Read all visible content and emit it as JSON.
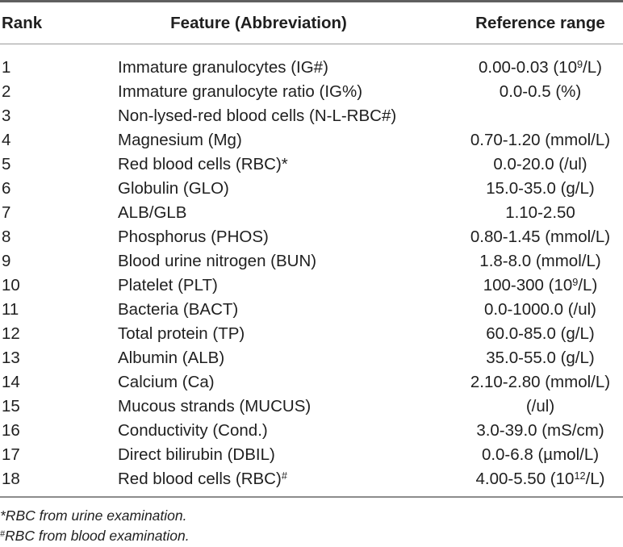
{
  "table": {
    "columns": [
      "Rank",
      "Feature (Abbreviation)",
      "Reference range"
    ],
    "rows": [
      {
        "rank": "1",
        "feature": [
          "Immature granulocytes (IG#)"
        ],
        "range": [
          "0.00-0.03 (10",
          {
            "sup": "9"
          },
          "/L)"
        ]
      },
      {
        "rank": "2",
        "feature": [
          "Immature granulocyte ratio (IG%)"
        ],
        "range": [
          "0.0-0.5 (%)"
        ]
      },
      {
        "rank": "3",
        "feature": [
          "Non-lysed-red blood cells (N-L-RBC#)"
        ],
        "range": []
      },
      {
        "rank": "4",
        "feature": [
          "Magnesium (Mg)"
        ],
        "range": [
          "0.70-1.20 (mmol/L)"
        ]
      },
      {
        "rank": "5",
        "feature": [
          "Red blood cells (RBC)*"
        ],
        "range": [
          "0.0-20.0 (/ul)"
        ]
      },
      {
        "rank": "6",
        "feature": [
          "Globulin (GLO)"
        ],
        "range": [
          "15.0-35.0 (g/L)"
        ]
      },
      {
        "rank": "7",
        "feature": [
          "ALB/GLB"
        ],
        "range": [
          "1.10-2.50"
        ]
      },
      {
        "rank": "8",
        "feature": [
          "Phosphorus (PHOS)"
        ],
        "range": [
          "0.80-1.45 (mmol/L)"
        ]
      },
      {
        "rank": "9",
        "feature": [
          "Blood urine nitrogen (BUN)"
        ],
        "range": [
          "1.8-8.0 (mmol/L)"
        ]
      },
      {
        "rank": "10",
        "feature": [
          "Platelet (PLT)"
        ],
        "range": [
          "100-300 (10",
          {
            "sup": "9"
          },
          "/L)"
        ]
      },
      {
        "rank": "11",
        "feature": [
          "Bacteria (BACT)"
        ],
        "range": [
          "0.0-1000.0 (/ul)"
        ]
      },
      {
        "rank": "12",
        "feature": [
          "Total protein (TP)"
        ],
        "range": [
          "60.0-85.0 (g/L)"
        ]
      },
      {
        "rank": "13",
        "feature": [
          "Albumin (ALB)"
        ],
        "range": [
          "35.0-55.0 (g/L)"
        ]
      },
      {
        "rank": "14",
        "feature": [
          "Calcium (Ca)"
        ],
        "range": [
          "2.10-2.80 (mmol/L)"
        ]
      },
      {
        "rank": "15",
        "feature": [
          "Mucous strands (MUCUS)"
        ],
        "range": [
          "(/ul)"
        ]
      },
      {
        "rank": "16",
        "feature": [
          "Conductivity (Cond.)"
        ],
        "range": [
          "3.0-39.0 (mS/cm)"
        ]
      },
      {
        "rank": "17",
        "feature": [
          "Direct bilirubin (DBIL)"
        ],
        "range": [
          "0.0-6.8 (µmol/L)"
        ]
      },
      {
        "rank": "18",
        "feature": [
          "Red blood cells (RBC)",
          {
            "sup": "#"
          }
        ],
        "range": [
          "4.00-5.50 (10",
          {
            "sup": "12"
          },
          "/L)"
        ]
      }
    ]
  },
  "footnotes": [
    [
      "*RBC from urine examination."
    ],
    [
      {
        "sup": "#"
      },
      "RBC from blood examination."
    ]
  ],
  "colors": {
    "text": "#1f1f1f",
    "top_rule": "#5f5f5f",
    "header_rule": "#9a9a9a",
    "bottom_rule": "#8c8c8c",
    "background": "#ffffff"
  }
}
